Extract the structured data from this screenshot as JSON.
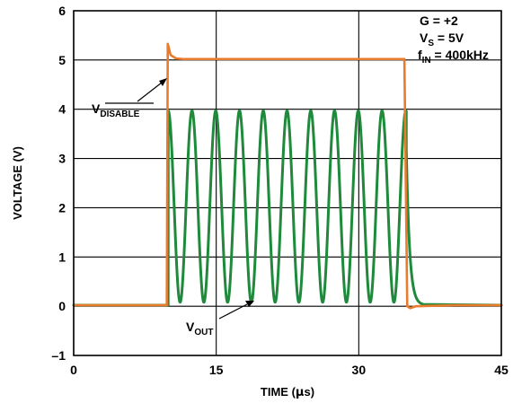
{
  "chart_data": {
    "type": "line",
    "xlabel_main": "TIME (",
    "xlabel_unit": "μ",
    "xlabel_end": "s)",
    "ylabel": "VOLTAGE (V)",
    "xlim": [
      0,
      45
    ],
    "ylim": [
      -1,
      6
    ],
    "grid": true,
    "x_tick_values": [
      0,
      15,
      30,
      45
    ],
    "x_tick_labels": [
      "0",
      "15",
      "30",
      "45"
    ],
    "x_grid_values": [
      0,
      15,
      30,
      45
    ],
    "y_tick_values": [
      -1,
      0,
      1,
      2,
      3,
      4,
      5,
      6
    ],
    "y_tick_labels": [
      "–1",
      "0",
      "1",
      "2",
      "3",
      "4",
      "5",
      "6"
    ],
    "series": [
      {
        "name": "V_DISABLE",
        "color": "#E97B2C",
        "points": [
          [
            0,
            0.02
          ],
          [
            9.8,
            0.02
          ],
          [
            9.9,
            5.33
          ],
          [
            10.2,
            5.1
          ],
          [
            10.8,
            5.03
          ],
          [
            11.5,
            5.02
          ],
          [
            20,
            5.02
          ],
          [
            34.8,
            5.02
          ],
          [
            35.1,
            0.0
          ],
          [
            35.4,
            -0.04
          ],
          [
            36,
            0.0
          ],
          [
            40,
            0.02
          ],
          [
            45,
            0.02
          ]
        ]
      },
      {
        "name": "V_OUT",
        "color": "#1F8A3C",
        "model": {
          "baseline": 0.02,
          "on_start": 9.95,
          "on_end": 35.0,
          "frequency_mhz": 0.4,
          "low": 0.08,
          "high": 3.97,
          "tail_start_value": 3.2,
          "tail_end": 36.8
        }
      }
    ],
    "annotations": {
      "gain": "G = +2",
      "vs_main": "V",
      "vs_sub": "S",
      "vs_value": " = 5V",
      "fin_main": "f",
      "fin_sub": "IN",
      "fin_value": " = 400kHz",
      "vdisable_main": "V",
      "vdisable_sub": "DISABLE",
      "vout_main": "V",
      "vout_sub": "OUT"
    }
  }
}
